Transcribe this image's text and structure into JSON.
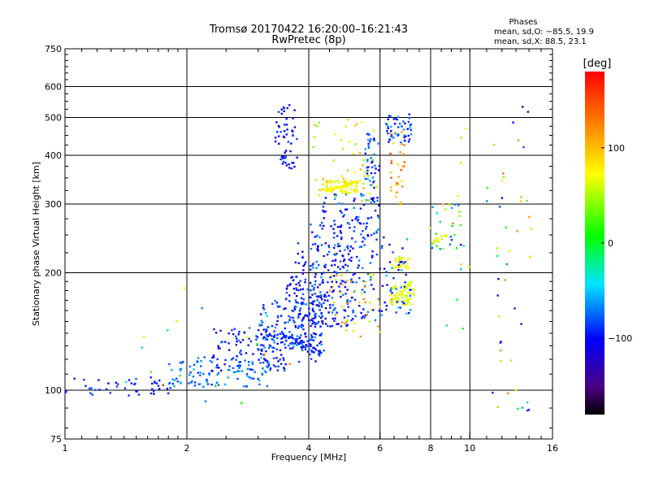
{
  "header": {
    "title_line1": "Tromsø 20170422 16:20:00–16:21:43",
    "title_line2": "RwPretec (8p)",
    "phase_stats": {
      "heading": "Phases",
      "line_o": "mean, sd,O: −85.5, 19.9",
      "line_x": "mean, sd,X:  88.5, 23.1"
    }
  },
  "chart_data": {
    "type": "scatter",
    "title": "Tromsø 20170422 16:20:00–16:21:43",
    "subtitle": "RwPretec (8p)",
    "xlabel": "Frequency [MHz]",
    "ylabel": "Stationary phase Virtual Height [km]",
    "x_scale": "log",
    "y_scale": "log",
    "xlim": [
      1,
      16
    ],
    "ylim": [
      75,
      750
    ],
    "x_ticks": [
      1,
      2,
      4,
      6,
      8,
      10,
      16
    ],
    "x_tick_labels": [
      "1",
      "2",
      "4",
      "6",
      "8",
      "10",
      "16"
    ],
    "y_ticks": [
      75,
      100,
      200,
      300,
      400,
      500,
      600,
      750
    ],
    "y_tick_labels": [
      "75",
      "100",
      "200",
      "300",
      "400",
      "500",
      "600",
      "750"
    ],
    "grid_x": [
      2,
      4,
      6,
      8,
      10
    ],
    "grid_y": [
      100,
      200,
      300,
      400,
      500,
      600
    ],
    "colorbar": {
      "label": "[deg]",
      "range": [
        -180,
        180
      ],
      "ticks": [
        100,
        0,
        -100
      ],
      "tick_labels": [
        "100",
        "0",
        "−100"
      ]
    },
    "clusters": [
      {
        "f": [
          1.0,
          1.85
        ],
        "h": [
          96,
          108
        ],
        "phase": [
          -110,
          -80
        ],
        "n": 45
      },
      {
        "f": [
          1.8,
          3.2
        ],
        "h": [
          102,
          122
        ],
        "phase": [
          -90,
          -55
        ],
        "n": 110
      },
      {
        "f": [
          2.3,
          3.6
        ],
        "h": [
          112,
          145
        ],
        "phase": [
          -120,
          -70
        ],
        "n": 110
      },
      {
        "f": [
          3.0,
          4.4
        ],
        "h": [
          118,
          170
        ],
        "phase": [
          -115,
          -60
        ],
        "n": 130
      },
      {
        "f": [
          3.5,
          4.3
        ],
        "h": [
          130,
          200
        ],
        "phase": [
          -115,
          -75
        ],
        "n": 80
      },
      {
        "f": [
          3.7,
          5.2
        ],
        "h": [
          145,
          240
        ],
        "phase": [
          -125,
          -70
        ],
        "n": 160
      },
      {
        "f": [
          4.0,
          6.0
        ],
        "h": [
          150,
          270
        ],
        "phase": [
          -120,
          -60
        ],
        "n": 130
      },
      {
        "f": [
          4.5,
          6.0
        ],
        "h": [
          135,
          200
        ],
        "phase": [
          40,
          130
        ],
        "n": 40
      },
      {
        "f": [
          4.2,
          6.0
        ],
        "h": [
          240,
          320
        ],
        "phase": [
          -115,
          -60
        ],
        "n": 70
      },
      {
        "f": [
          4.3,
          5.3
        ],
        "h": [
          320,
          345
        ],
        "phase": [
          55,
          90
        ],
        "n": 60
      },
      {
        "f": [
          3.3,
          3.75
        ],
        "h": [
          370,
          540
        ],
        "phase": [
          -120,
          -80
        ],
        "n": 55
      },
      {
        "f": [
          4.1,
          5.9
        ],
        "h": [
          300,
          500
        ],
        "phase": [
          30,
          110
        ],
        "n": 50
      },
      {
        "f": [
          5.5,
          6.0
        ],
        "h": [
          330,
          460
        ],
        "phase": [
          -110,
          -60
        ],
        "n": 40
      },
      {
        "f": [
          6.2,
          7.2
        ],
        "h": [
          430,
          510
        ],
        "phase": [
          -120,
          -60
        ],
        "n": 50
      },
      {
        "f": [
          6.3,
          6.9
        ],
        "h": [
          300,
          460
        ],
        "phase": [
          80,
          150
        ],
        "n": 30
      },
      {
        "f": [
          6.3,
          7.3
        ],
        "h": [
          165,
          185
        ],
        "phase": [
          45,
          80
        ],
        "n": 45
      },
      {
        "f": [
          6.4,
          7.1
        ],
        "h": [
          205,
          220
        ],
        "phase": [
          50,
          85
        ],
        "n": 30
      },
      {
        "f": [
          6.0,
          7.2
        ],
        "h": [
          150,
          250
        ],
        "phase": [
          -120,
          -50
        ],
        "n": 50
      },
      {
        "f": [
          8.0,
          9.5
        ],
        "h": [
          230,
          300
        ],
        "phase": [
          -110,
          60
        ],
        "n": 25
      },
      {
        "f": [
          8.4,
          10.0
        ],
        "h": [
          140,
          500
        ],
        "phase": [
          -80,
          130
        ],
        "n": 15
      },
      {
        "f": [
          11.0,
          14.2
        ],
        "h": [
          85,
          610
        ],
        "phase": [
          -140,
          130
        ],
        "n": 45
      },
      {
        "f": [
          1.4,
          3.6
        ],
        "h": [
          88,
          200
        ],
        "phase": [
          -100,
          130
        ],
        "n": 20
      }
    ],
    "tracks": [
      {
        "f": [
          4.4,
          5.2
        ],
        "h0": 325,
        "h1": 340,
        "phase": [
          60,
          85
        ],
        "n": 45
      },
      {
        "f": [
          6.4,
          7.2
        ],
        "h0": 168,
        "h1": 190,
        "phase": [
          50,
          75
        ],
        "n": 35
      },
      {
        "f": [
          8.1,
          8.8
        ],
        "h0": 240,
        "h1": 250,
        "phase": [
          50,
          75
        ],
        "n": 15
      },
      {
        "f": [
          3.25,
          4.3
        ],
        "h0": 140,
        "h1": 125,
        "phase": [
          -105,
          -80
        ],
        "n": 50
      }
    ]
  }
}
